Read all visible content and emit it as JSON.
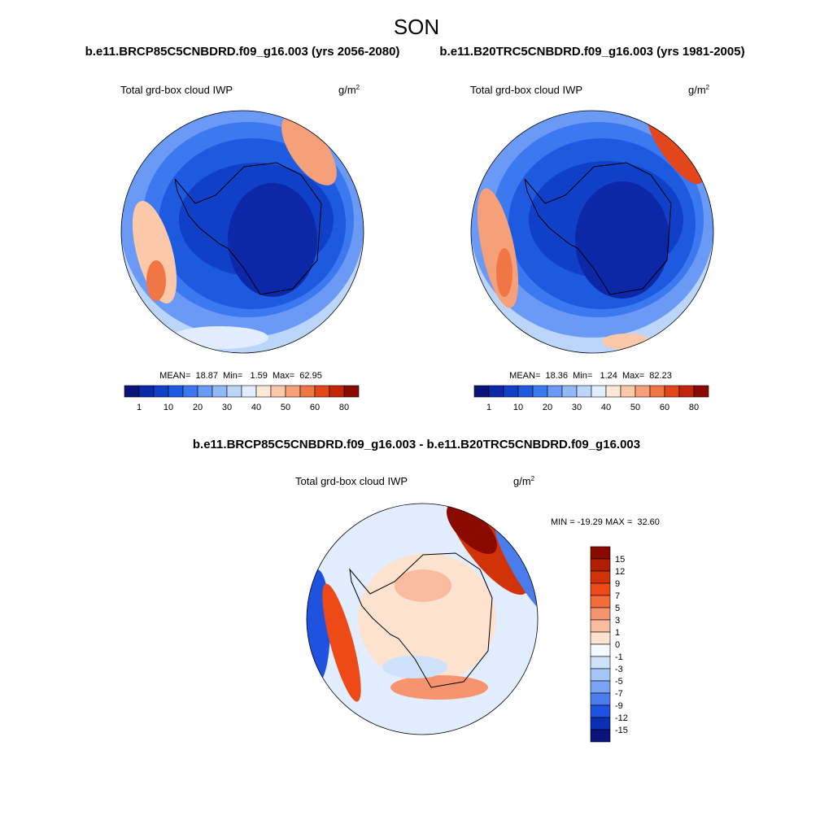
{
  "title": "SON",
  "panels": [
    {
      "subtitle": "b.e11.BRCP85C5CNBDRD.f09_g16.003 (yrs 2056-2080)",
      "variable": "Total grd-box cloud IWP",
      "units": {
        "base": "g/m",
        "exponent": "2"
      },
      "stats": "MEAN=  18.87  Min=   1.59  Max=  62.95",
      "colorbar": {
        "labels": [
          "1",
          "10",
          "20",
          "30",
          "40",
          "50",
          "60",
          "80"
        ],
        "colors": [
          "#0a1478",
          "#0c28a8",
          "#1040c8",
          "#1e5ae0",
          "#3c78f0",
          "#6a9af6",
          "#92b8f8",
          "#bcd6fb",
          "#e2eeff",
          "#ffe8d6",
          "#fbc8aa",
          "#f6a07a",
          "#f07646",
          "#e4461c",
          "#c2260a",
          "#8a0a00"
        ]
      }
    },
    {
      "subtitle": "b.e11.B20TRC5CNBDRD.f09_g16.003 (yrs 1981-2005)",
      "variable": "Total grd-box cloud IWP",
      "units": {
        "base": "g/m",
        "exponent": "2"
      },
      "stats": "MEAN=  18.36  Min=   1.24  Max=  82.23",
      "colorbar": {
        "labels": [
          "1",
          "10",
          "20",
          "30",
          "40",
          "50",
          "60",
          "80"
        ],
        "colors": [
          "#0a1478",
          "#0c28a8",
          "#1040c8",
          "#1e5ae0",
          "#3c78f0",
          "#6a9af6",
          "#92b8f8",
          "#bcd6fb",
          "#e2eeff",
          "#ffe8d6",
          "#fbc8aa",
          "#f6a07a",
          "#f07646",
          "#e4461c",
          "#c2260a",
          "#8a0a00"
        ]
      }
    },
    {
      "subtitle": "b.e11.BRCP85C5CNBDRD.f09_g16.003 - b.e11.B20TRC5CNBDRD.f09_g16.003",
      "variable": "Total grd-box cloud IWP",
      "units": {
        "base": "g/m",
        "exponent": "2"
      },
      "stats": "MIN = -19.29 MAX =  32.60",
      "colorbar": {
        "labels": [
          "15",
          "12",
          "9",
          "7",
          "5",
          "3",
          "1",
          "0",
          "-1",
          "-3",
          "-5",
          "-7",
          "-9",
          "-12",
          "-15"
        ],
        "colors": [
          "#8a0a00",
          "#b01e04",
          "#d23208",
          "#ee4a18",
          "#f26c3c",
          "#f69470",
          "#f9bca0",
          "#fde2d0",
          "#f4f8ff",
          "#cfe2fb",
          "#a6c6f8",
          "#7aa4f4",
          "#4a7cee",
          "#2052e0",
          "#0c30b4",
          "#0a1478"
        ]
      }
    }
  ]
}
